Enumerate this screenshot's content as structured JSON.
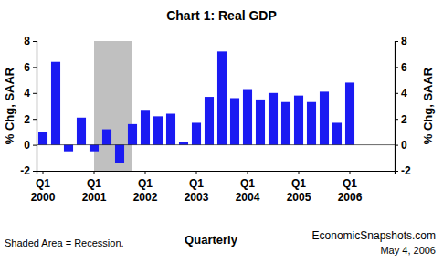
{
  "chart_data": {
    "type": "bar",
    "title": "Chart 1: Real GDP",
    "y_label": "% Chg, SAAR",
    "x_label": "Quarterly",
    "note": "Shaded Area = Recession.",
    "source": "EconomicSnapshots.com",
    "date": "May 4, 2006",
    "categories": [
      "Q1 2000",
      null,
      null,
      null,
      "Q1 2001",
      null,
      null,
      null,
      "Q1 2002",
      null,
      null,
      null,
      "Q1 2003",
      null,
      null,
      null,
      "Q1 2004",
      null,
      null,
      null,
      "Q1 2005",
      null,
      null,
      null,
      "Q1 2006",
      null,
      null,
      null
    ],
    "values": [
      1.0,
      6.4,
      -0.5,
      2.1,
      -0.5,
      1.2,
      -1.4,
      1.6,
      2.7,
      2.2,
      2.4,
      0.2,
      1.7,
      3.7,
      7.2,
      3.6,
      4.3,
      3.5,
      4.0,
      3.3,
      3.8,
      3.3,
      4.1,
      1.7,
      4.8,
      null,
      null,
      null
    ],
    "color": "#1a1af2",
    "recession": {
      "start": 4,
      "end": 7
    },
    "ylim": [
      -2,
      8
    ],
    "yticks": [
      -2,
      0,
      2,
      4,
      6,
      8
    ],
    "y2lim": [
      -2,
      8
    ],
    "y2ticks": [
      -2,
      0,
      2,
      4,
      6,
      8
    ],
    "grid": false
  }
}
